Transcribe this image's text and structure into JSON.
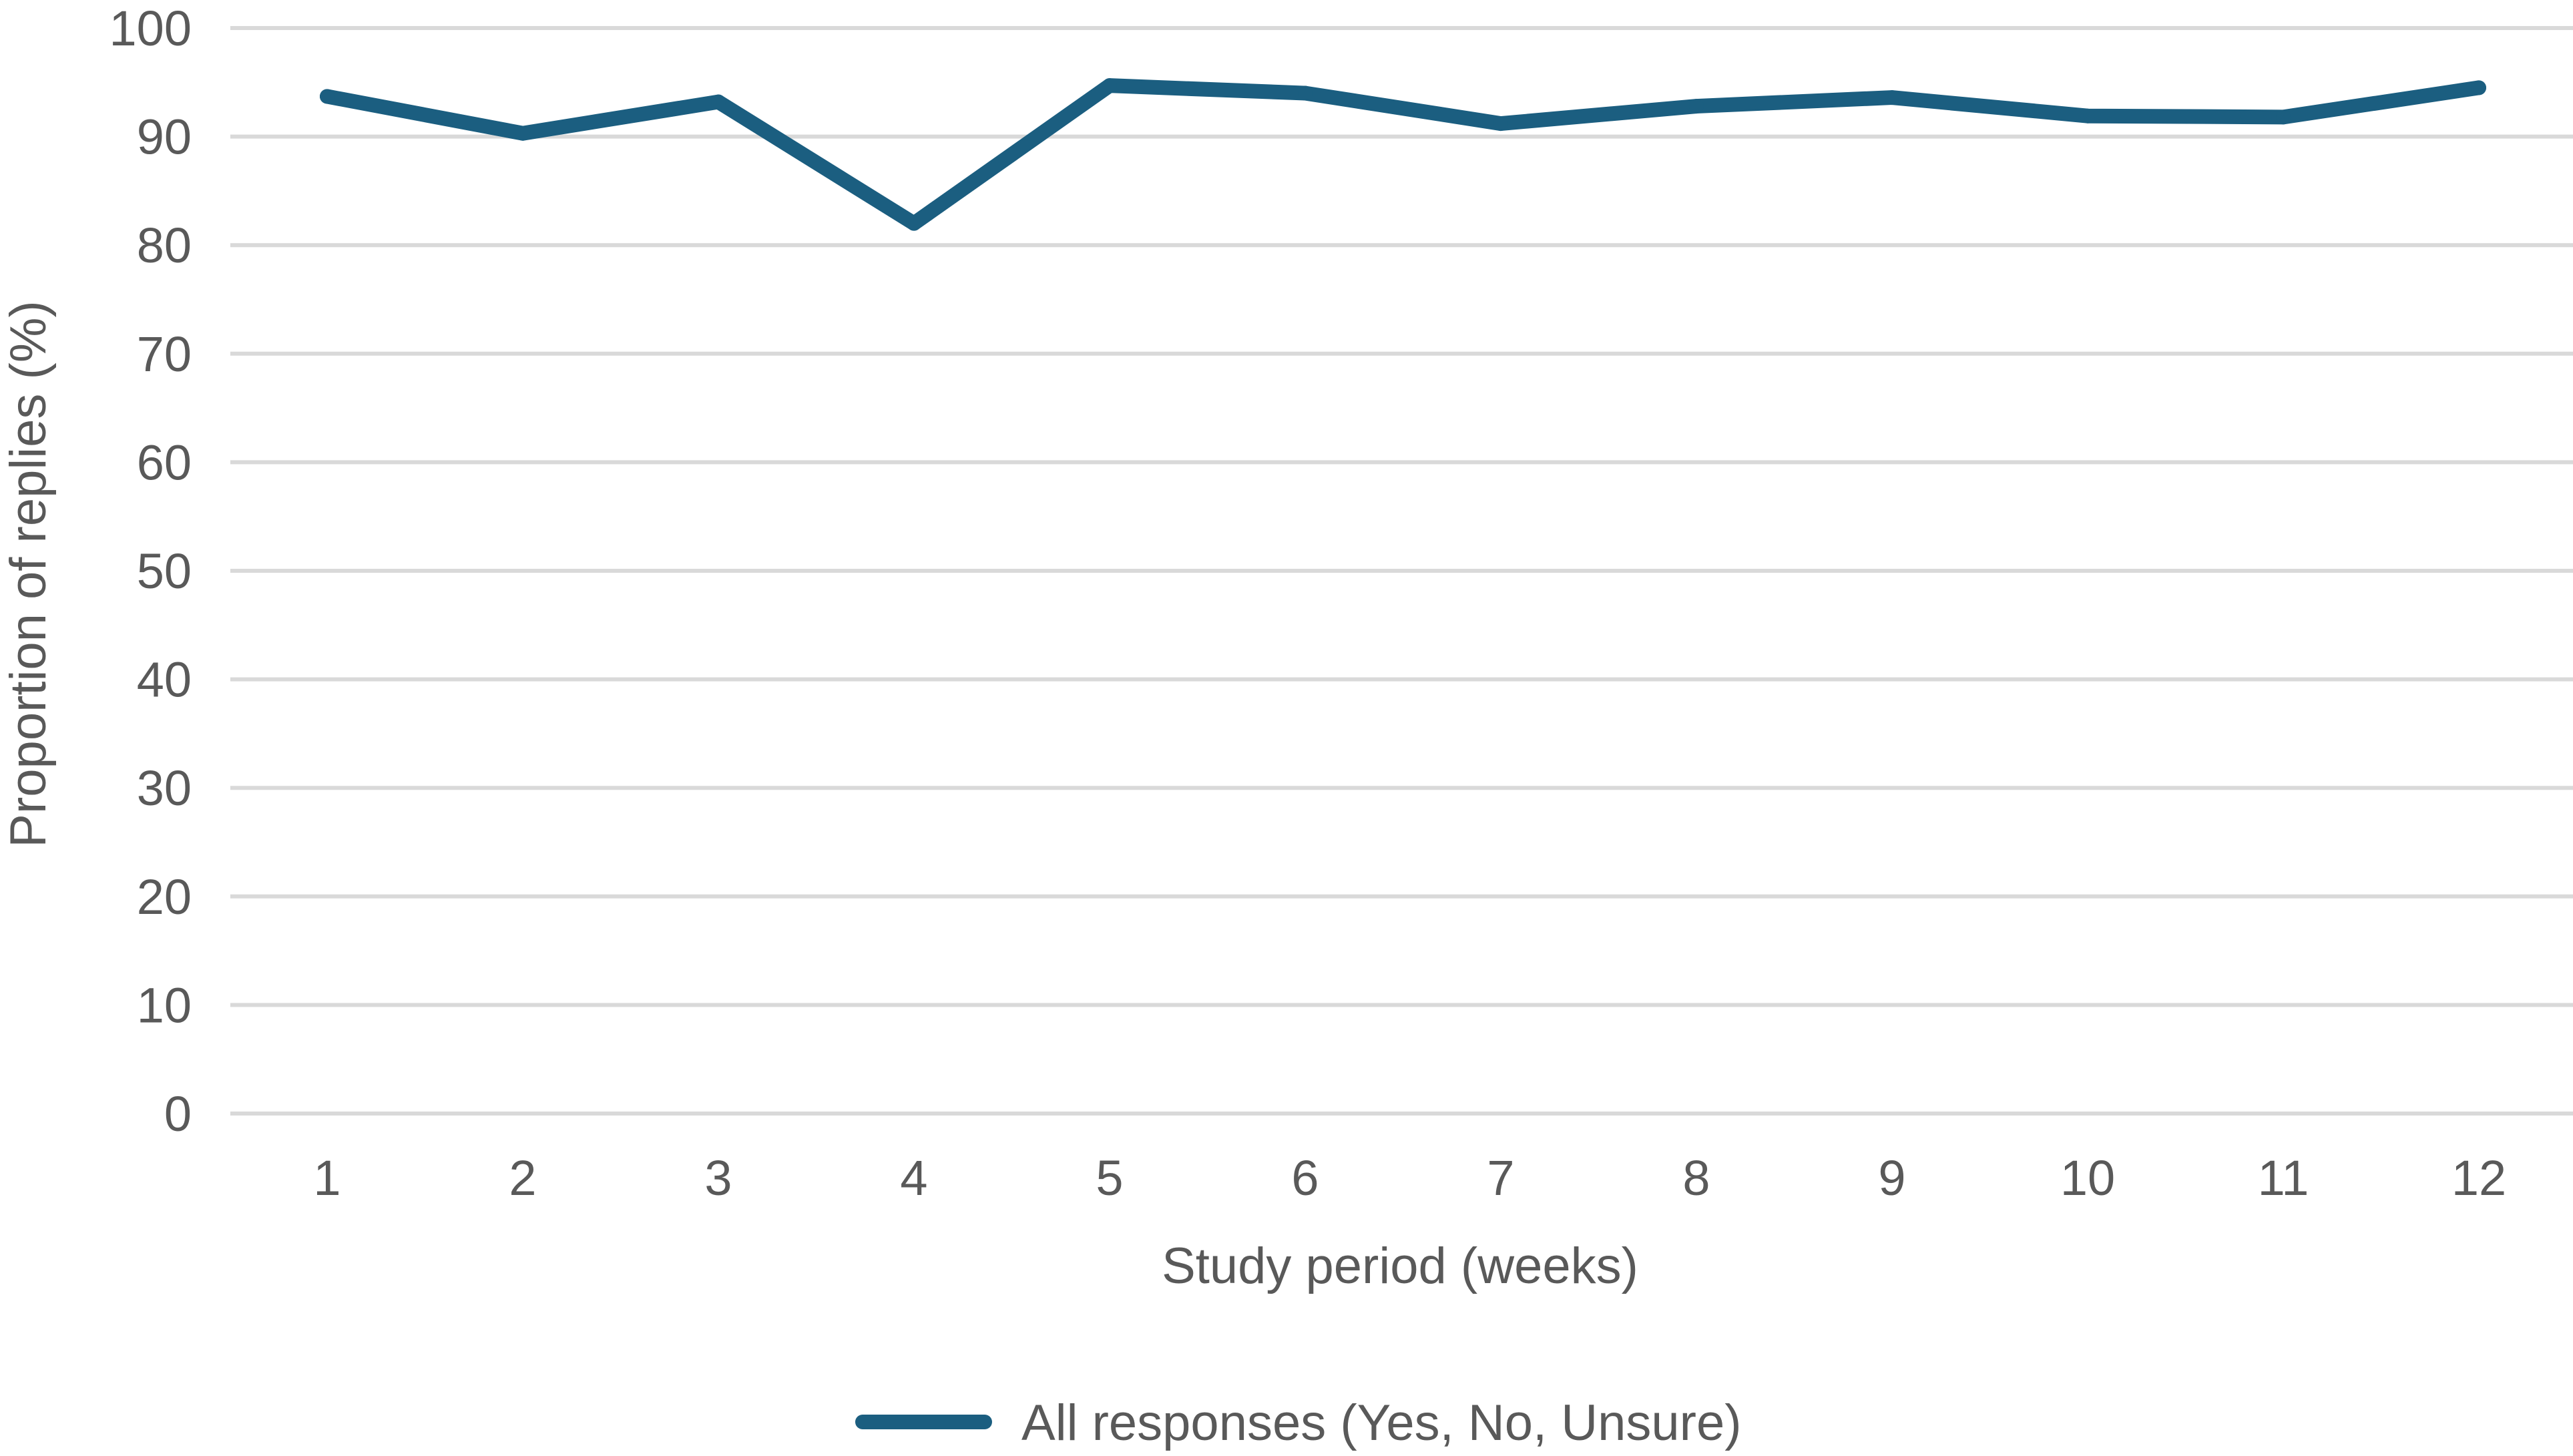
{
  "chart_data": {
    "type": "line",
    "title": "",
    "xlabel": "Study period (weeks)",
    "ylabel": "Proportion of replies (%)",
    "categories": [
      "1",
      "2",
      "3",
      "4",
      "5",
      "6",
      "7",
      "8",
      "9",
      "10",
      "11",
      "12"
    ],
    "ylim": [
      0,
      100
    ],
    "yticks": [
      "0",
      "10",
      "20",
      "30",
      "40",
      "50",
      "60",
      "70",
      "80",
      "90",
      "100"
    ],
    "grid": true,
    "legend_position": "bottom",
    "series": [
      {
        "name": "All responses (Yes, No, Unsure)",
        "color": "#1b5e80",
        "values": [
          93.7,
          90.3,
          93.2,
          82.0,
          94.7,
          94.0,
          91.2,
          92.8,
          93.6,
          91.9,
          91.8,
          94.5
        ]
      }
    ]
  }
}
